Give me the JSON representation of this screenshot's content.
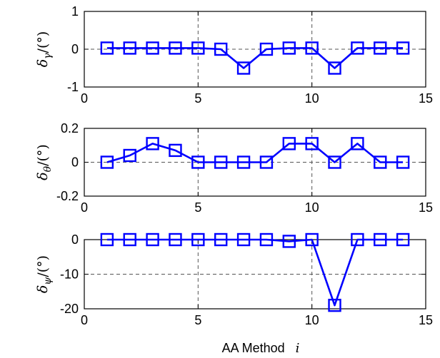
{
  "figure": {
    "xlabel": "AA Method",
    "xlabel_var": "i"
  },
  "colors": {
    "series": "#0000ff",
    "axes": "#000000",
    "grid": "#555555",
    "background": "#ffffff"
  },
  "chart_data": [
    {
      "type": "line",
      "ylabel_sym": "δ",
      "ylabel_sub": "γ",
      "ylabel_unit": "/(°)",
      "xlim": [
        0,
        15
      ],
      "ylim": [
        -1,
        1
      ],
      "xticks": [
        0,
        5,
        10,
        15
      ],
      "yticks": [
        -1,
        0,
        1
      ],
      "xtick_labels": [
        "0",
        "5",
        "10",
        "15"
      ],
      "ytick_labels": [
        "-1",
        "0",
        "1"
      ],
      "grid": true,
      "marker": "square",
      "series": [
        {
          "x": [
            1,
            2,
            3,
            4,
            5,
            6,
            7,
            8,
            9,
            10,
            11,
            12,
            13,
            14
          ],
          "values": [
            0.03,
            0.03,
            0.03,
            0.03,
            0.03,
            0.0,
            -0.5,
            0.0,
            0.03,
            0.03,
            -0.5,
            0.03,
            0.03,
            0.03
          ]
        }
      ]
    },
    {
      "type": "line",
      "ylabel_sym": "δ",
      "ylabel_sub": "θ",
      "ylabel_unit": "/(°)",
      "xlim": [
        0,
        15
      ],
      "ylim": [
        -0.2,
        0.2
      ],
      "xticks": [
        0,
        5,
        10,
        15
      ],
      "yticks": [
        -0.2,
        0,
        0.2
      ],
      "xtick_labels": [
        "0",
        "5",
        "10",
        "15"
      ],
      "ytick_labels": [
        "-0.2",
        "0",
        "0.2"
      ],
      "grid": true,
      "marker": "square",
      "series": [
        {
          "x": [
            1,
            2,
            3,
            4,
            5,
            6,
            7,
            8,
            9,
            10,
            11,
            12,
            13,
            14
          ],
          "values": [
            0.0,
            0.04,
            0.11,
            0.07,
            0.0,
            0.0,
            0.0,
            0.0,
            0.11,
            0.11,
            0.0,
            0.11,
            0.0,
            0.0
          ]
        }
      ]
    },
    {
      "type": "line",
      "ylabel_sym": "δ",
      "ylabel_sub": "ψ",
      "ylabel_unit": "/(°)",
      "xlim": [
        0,
        15
      ],
      "ylim": [
        -20,
        0
      ],
      "xticks": [
        0,
        5,
        10,
        15
      ],
      "yticks": [
        -20,
        -10,
        0
      ],
      "xtick_labels": [
        "0",
        "5",
        "10",
        "15"
      ],
      "ytick_labels": [
        "-20",
        "-10",
        "0"
      ],
      "grid": true,
      "marker": "square",
      "series": [
        {
          "x": [
            1,
            2,
            3,
            4,
            5,
            6,
            7,
            8,
            9,
            10,
            11,
            12,
            13,
            14
          ],
          "values": [
            0,
            0,
            0,
            0,
            0,
            0,
            0,
            0,
            -0.5,
            0,
            -19,
            0,
            0,
            0
          ]
        }
      ]
    }
  ]
}
